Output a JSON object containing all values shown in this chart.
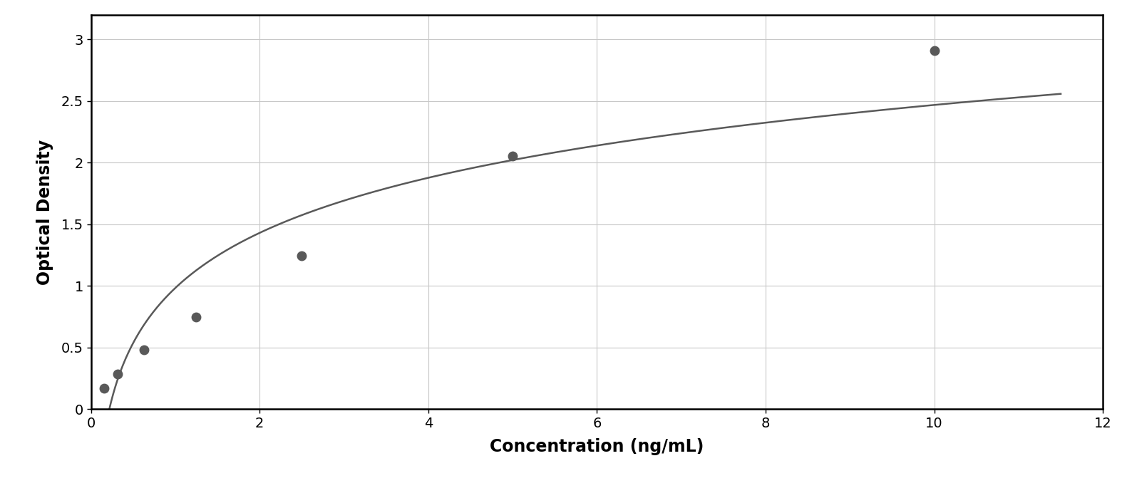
{
  "x_data": [
    0.156,
    0.313,
    0.625,
    1.25,
    2.5,
    5.0,
    10.0
  ],
  "y_data": [
    0.172,
    0.285,
    0.48,
    0.745,
    1.245,
    2.055,
    2.91
  ],
  "xlabel": "Concentration (ng/mL)",
  "ylabel": "Optical Density",
  "xlim": [
    0,
    12
  ],
  "ylim": [
    0,
    3.2
  ],
  "xticks": [
    0,
    2,
    4,
    6,
    8,
    10,
    12
  ],
  "yticks": [
    0,
    0.5,
    1.0,
    1.5,
    2.0,
    2.5,
    3.0
  ],
  "data_color": "#595959",
  "line_color": "#595959",
  "marker_size": 9,
  "line_width": 1.8,
  "background_color": "#ffffff",
  "plot_bg_color": "#ffffff",
  "grid_color": "#c8c8c8",
  "xlabel_fontsize": 17,
  "ylabel_fontsize": 17,
  "tick_fontsize": 14,
  "xlabel_fontweight": "bold",
  "ylabel_fontweight": "bold",
  "hill_a": 3.5,
  "hill_b": 0.65,
  "hill_c": 3.5,
  "hill_d": 0.08
}
